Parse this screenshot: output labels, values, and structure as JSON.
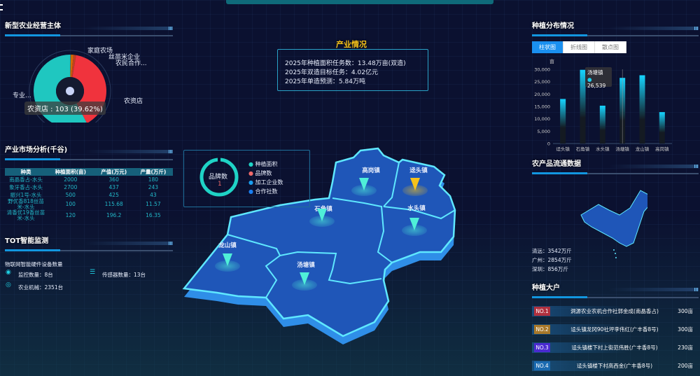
{
  "header": {
    "menu_icon": "menu-icon"
  },
  "left": {
    "entities": {
      "title": "新型农业经营主体",
      "tooltip": "农资店 : 103 (39.62%)",
      "slices": [
        {
          "label": "农资店",
          "value": 103,
          "color": "#f0333d"
        },
        {
          "label": "专业...",
          "value": 150,
          "color": "#1fc7c0"
        },
        {
          "label": "家庭农场",
          "value": 1,
          "color": "#2a8a8a"
        },
        {
          "label": "丝苗米企业",
          "value": 3,
          "color": "#d46a00"
        },
        {
          "label": "农民合作...",
          "value": 3,
          "color": "#c04020"
        }
      ]
    },
    "market": {
      "title": "产业市场分析(千谷)",
      "headers": [
        "种类",
        "种植面积(亩)",
        "产值(万元)",
        "产量(万斤)"
      ],
      "rows": [
        [
          "南晶香占-水头",
          "2000",
          "360",
          "180"
        ],
        [
          "象牙香占-水头",
          "2700",
          "437",
          "243"
        ],
        [
          "振兴1号-水头",
          "500",
          "425",
          "43"
        ],
        [
          "野优香818丝苗米-水头",
          "100",
          "115.68",
          "11.57"
        ],
        [
          "清香优19香丝苗米-水头",
          "120",
          "196.2",
          "16.35"
        ]
      ]
    },
    "iot": {
      "title": "TOT智能监测",
      "subtitle": "物联网智能硬件设备数量",
      "monitor": "监控数量：8台",
      "sensor": "传感器数量：13台",
      "machinery": "农业机械：2351台"
    }
  },
  "center": {
    "industry": {
      "title": "产业情况",
      "lines": [
        "2025年种植面积任务数：13.48万亩(双造)",
        "2025年双造目标任务：4.02亿元",
        "2025年单造预测：5.84万吨"
      ]
    },
    "legend": {
      "gauge_label": "品牌数",
      "gauge_value": "1",
      "items": [
        {
          "label": "种植面积",
          "color": "#1fd3c6"
        },
        {
          "label": "品牌数",
          "color": "#f06a6a"
        },
        {
          "label": "加工企业数",
          "color": "#1a9ef0"
        },
        {
          "label": "合作社数",
          "color": "#1a7ef0"
        }
      ]
    },
    "towns": [
      "高岗镇",
      "迳头镇",
      "石角镇",
      "水头镇",
      "龙山镇",
      "汤塘镇"
    ],
    "highlight_color": "#f5c21b"
  },
  "right": {
    "distribution": {
      "title": "种植分布情况",
      "tabs": [
        "柱状图",
        "折线图",
        "散点图"
      ],
      "active_tab": 0,
      "tooltip": {
        "name": "汤塘镇",
        "value": "26,539"
      }
    },
    "flow": {
      "title": "农产品流通数据",
      "items": [
        "清远：3542万斤",
        "广州：2854万斤",
        "深圳：856万斤"
      ]
    },
    "growers": {
      "title": "种植大户",
      "items": [
        {
          "rank": "NO.1",
          "name": "洞源农业农机合作社郭金成(南晶香占)",
          "value": "300亩",
          "color": "#b0303e"
        },
        {
          "rank": "NO.2",
          "name": "迳头镇龙冈90社坪李伟红(广丰香8号)",
          "value": "300亩",
          "color": "#a8782a"
        },
        {
          "rank": "NO.3",
          "name": "迳头镇楼下村上街范伟胜(广丰香8号)",
          "value": "230亩",
          "color": "#4a2ad0"
        },
        {
          "rank": "NO.4",
          "name": "迳头镇楼下村高西金(广丰香8号)",
          "value": "200亩",
          "color": "#1a6ab0"
        }
      ]
    }
  },
  "chart_data": {
    "type": "bar",
    "ylabel": "亩",
    "categories": [
      "迳头镇",
      "石角镇",
      "水头镇",
      "汤塘镇",
      "龙山镇",
      "高岗镇"
    ],
    "values": [
      18000,
      29800,
      15300,
      26539,
      27600,
      12700
    ],
    "ylim": [
      0,
      30000
    ],
    "yticks": [
      "0",
      "5,000",
      "10,000",
      "15,000",
      "20,000",
      "25,000",
      "30,000"
    ],
    "grid": false
  }
}
